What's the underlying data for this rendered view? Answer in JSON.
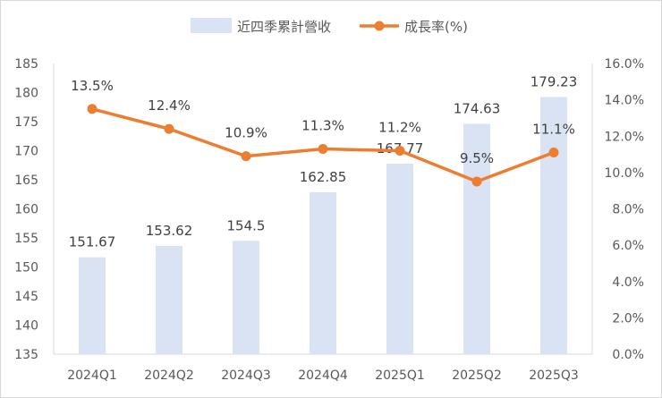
{
  "chart_data": {
    "type": "bar+line",
    "categories": [
      "2024Q1",
      "2024Q2",
      "2024Q3",
      "2024Q4",
      "2025Q1",
      "2025Q2",
      "2025Q3"
    ],
    "series": [
      {
        "name": "近四季累計營收",
        "type": "bar",
        "axis": "left",
        "color": "#dae3f3",
        "values": [
          151.67,
          153.62,
          154.5,
          162.85,
          167.77,
          174.63,
          179.23
        ],
        "labels": [
          "151.67",
          "153.62",
          "154.5",
          "162.85",
          "167.77",
          "174.63",
          "179.23"
        ]
      },
      {
        "name": "成長率(%)",
        "type": "line",
        "axis": "right",
        "color": "#ed7d31",
        "values": [
          13.5,
          12.4,
          10.9,
          11.3,
          11.2,
          9.5,
          11.1
        ],
        "labels": [
          "13.5%",
          "12.4%",
          "10.9%",
          "11.3%",
          "11.2%",
          "9.5%",
          "11.1%"
        ]
      }
    ],
    "y_left": {
      "min": 135,
      "max": 185,
      "step": 5,
      "ticks": [
        "135",
        "140",
        "145",
        "150",
        "155",
        "160",
        "165",
        "170",
        "175",
        "180",
        "185"
      ]
    },
    "y_right": {
      "min": 0,
      "max": 16,
      "step": 2,
      "ticks": [
        "0.0%",
        "2.0%",
        "4.0%",
        "6.0%",
        "8.0%",
        "10.0%",
        "12.0%",
        "14.0%",
        "16.0%"
      ]
    },
    "legend_position": "top-center",
    "grid": false
  }
}
